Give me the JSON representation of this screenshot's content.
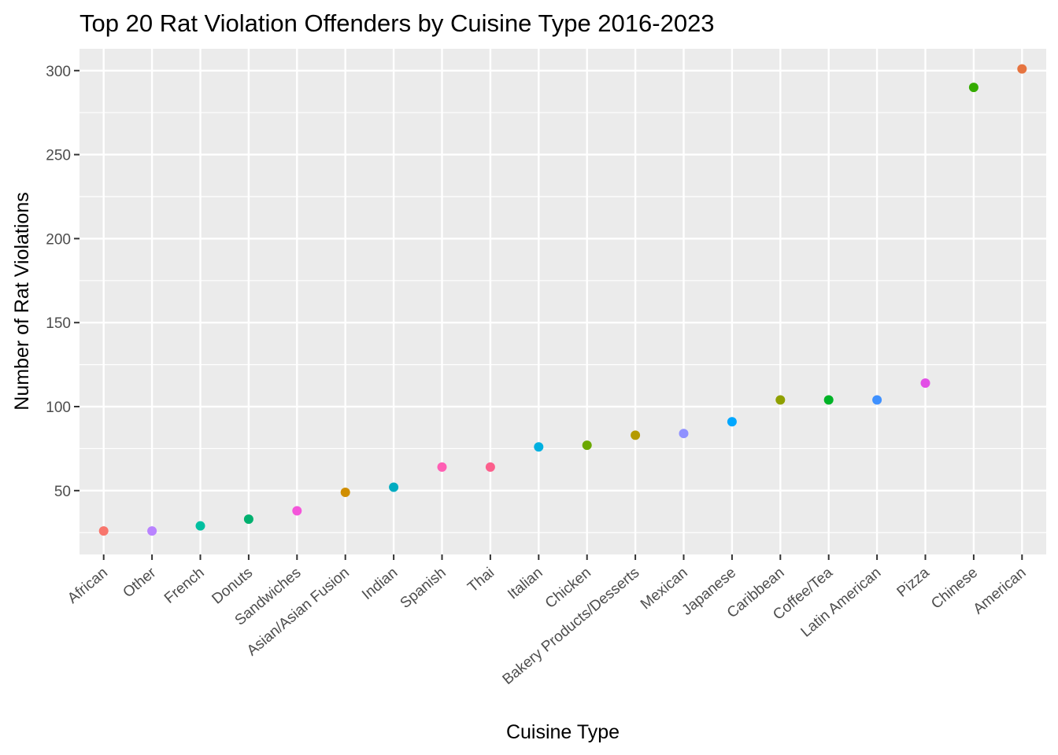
{
  "chart_data": {
    "type": "scatter",
    "title": "Top 20 Rat Violation Offenders by Cuisine Type 2016-2023",
    "xlabel": "Cuisine Type",
    "ylabel": "Number of Rat Violations",
    "ylim": [
      12,
      313
    ],
    "yticks": [
      50,
      100,
      150,
      200,
      250,
      300
    ],
    "grid": true,
    "legend": "none",
    "categories": [
      "African",
      "Other",
      "French",
      "Donuts",
      "Sandwiches",
      "Asian/Asian Fusion",
      "Indian",
      "Spanish",
      "Thai",
      "Italian",
      "Chicken",
      "Bakery Products/Desserts",
      "Mexican",
      "Japanese",
      "Caribbean",
      "Coffee/Tea",
      "Latin American",
      "Pizza",
      "Chinese",
      "American"
    ],
    "values": [
      26,
      26,
      29,
      33,
      38,
      49,
      52,
      64,
      64,
      76,
      77,
      83,
      84,
      91,
      104,
      104,
      104,
      114,
      290,
      301
    ],
    "colors": [
      "#F8766D",
      "#B983FF",
      "#00BFA0",
      "#00B06F",
      "#F455DA",
      "#D08E00",
      "#00ACC1",
      "#FF5FB4",
      "#FC5F8C",
      "#00B0E0",
      "#6BA800",
      "#B49A00",
      "#8F91FF",
      "#00A7FF",
      "#8FA000",
      "#00B327",
      "#3F91FF",
      "#E24EE6",
      "#34AB00",
      "#E67440"
    ]
  }
}
